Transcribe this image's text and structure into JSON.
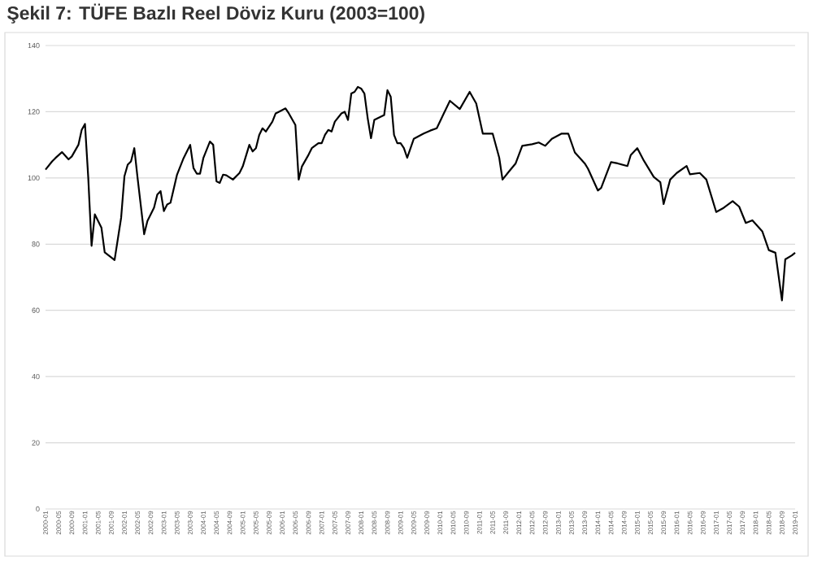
{
  "chart_data": {
    "type": "line",
    "title": "Şekil 7: TÜFE Bazlı Reel Döviz Kuru (2003=100)",
    "x": [
      "2000-01",
      "2000-03",
      "2000-04",
      "2000-06",
      "2000-08",
      "2000-09",
      "2000-11",
      "2000-12",
      "2001-01",
      "2001-02",
      "2001-03",
      "2001-04",
      "2001-06",
      "2001-07",
      "2001-09",
      "2001-10",
      "2001-12",
      "2002-01",
      "2002-02",
      "2002-03",
      "2002-04",
      "2002-05",
      "2002-07",
      "2002-08",
      "2002-10",
      "2002-11",
      "2002-12",
      "2003-01",
      "2003-02",
      "2003-03",
      "2003-05",
      "2003-07",
      "2003-09",
      "2003-10",
      "2003-11",
      "2003-12",
      "2004-01",
      "2004-03",
      "2004-04",
      "2004-05",
      "2004-06",
      "2004-07",
      "2004-08",
      "2004-10",
      "2004-12",
      "2005-01",
      "2005-03",
      "2005-04",
      "2005-05",
      "2005-06",
      "2005-07",
      "2005-08",
      "2005-10",
      "2005-11",
      "2005-12",
      "2006-02",
      "2006-03",
      "2006-05",
      "2006-06",
      "2006-07",
      "2006-09",
      "2006-10",
      "2006-12",
      "2007-01",
      "2007-02",
      "2007-03",
      "2007-04",
      "2007-05",
      "2007-07",
      "2007-08",
      "2007-09",
      "2007-10",
      "2007-11",
      "2007-12",
      "2008-01",
      "2008-02",
      "2008-03",
      "2008-04",
      "2008-05",
      "2008-07",
      "2008-08",
      "2008-09",
      "2008-10",
      "2008-11",
      "2008-12",
      "2009-01",
      "2009-02",
      "2009-03",
      "2009-05",
      "2009-08",
      "2009-10",
      "2009-12",
      "2010-02",
      "2010-04",
      "2010-07",
      "2010-10",
      "2010-12",
      "2011-02",
      "2011-05",
      "2011-07",
      "2011-08",
      "2011-10",
      "2011-12",
      "2012-02",
      "2012-05",
      "2012-07",
      "2012-09",
      "2012-11",
      "2013-02",
      "2013-04",
      "2013-06",
      "2013-09",
      "2013-10",
      "2014-01",
      "2014-02",
      "2014-05",
      "2014-07",
      "2014-10",
      "2014-11",
      "2015-01",
      "2015-03",
      "2015-06",
      "2015-08",
      "2015-09",
      "2015-11",
      "2016-01",
      "2016-04",
      "2016-05",
      "2016-08",
      "2016-10",
      "2017-01",
      "2017-03",
      "2017-06",
      "2017-08",
      "2017-10",
      "2017-12",
      "2018-03",
      "2018-05",
      "2018-07",
      "2018-09",
      "2018-10",
      "2018-12",
      "2019-01"
    ],
    "series": [
      {
        "color": "#000000",
        "values": [
          102.5,
          105,
          106,
          107.8,
          105.6,
          106.5,
          110,
          114.5,
          116.3,
          100,
          79.5,
          89,
          85,
          77.5,
          76,
          75.2,
          88,
          100.5,
          104,
          105,
          109,
          100,
          83,
          87,
          91,
          95,
          96,
          90,
          92,
          92.5,
          101,
          106,
          110,
          103,
          101.3,
          101.3,
          106,
          111,
          110,
          99,
          98.5,
          101,
          100.8,
          99.5,
          101.5,
          103.5,
          110,
          108,
          109,
          113,
          115,
          114,
          117,
          119.5,
          120,
          121,
          119.5,
          116,
          99.5,
          103.5,
          107,
          109,
          110.5,
          110.5,
          113,
          114.5,
          114,
          117,
          119.5,
          120,
          117.5,
          125.5,
          126,
          127.5,
          127,
          125.5,
          118,
          112,
          117.5,
          118.5,
          119,
          126.5,
          124.5,
          113,
          110.5,
          110.5,
          109,
          106.1,
          111.8,
          113.4,
          114.3,
          115,
          119.2,
          123.3,
          120.8,
          126,
          122.5,
          113.4,
          113.4,
          106.1,
          99.5,
          102,
          104.4,
          109.7,
          110.2,
          110.7,
          109.7,
          111.8,
          113.4,
          113.4,
          107.7,
          104.4,
          102.8,
          96.2,
          97,
          104.8,
          104.4,
          103.6,
          106.9,
          109,
          105.2,
          100.3,
          98.7,
          92.1,
          99.5,
          101.5,
          103.6,
          101.1,
          101.5,
          99.5,
          89.7,
          90.8,
          93,
          91.3,
          86.4,
          87.2,
          83.9,
          78.2,
          77.4,
          63,
          75.4,
          76.6,
          77.4
        ]
      }
    ],
    "xlim": [
      "2000-01",
      "2019-01"
    ],
    "xticks": [
      "2000-01",
      "2000-05",
      "2000-09",
      "2001-01",
      "2001-05",
      "2001-09",
      "2002-01",
      "2002-05",
      "2002-09",
      "2003-01",
      "2003-05",
      "2003-09",
      "2004-01",
      "2004-05",
      "2004-09",
      "2005-01",
      "2005-05",
      "2005-09",
      "2006-01",
      "2006-05",
      "2006-09",
      "2007-01",
      "2007-05",
      "2007-09",
      "2008-01",
      "2008-05",
      "2008-09",
      "2009-01",
      "2009-05",
      "2009-09",
      "2010-01",
      "2010-05",
      "2010-09",
      "2011-01",
      "2011-05",
      "2011-09",
      "2012-01",
      "2012-05",
      "2012-09",
      "2013-01",
      "2013-05",
      "2013-09",
      "2014-01",
      "2014-05",
      "2014-09",
      "2015-01",
      "2015-05",
      "2015-09",
      "2016-01",
      "2016-05",
      "2016-09",
      "2017-01",
      "2017-05",
      "2017-09",
      "2018-01",
      "2018-05",
      "2018-09",
      "2019-01"
    ],
    "ylim": [
      0,
      140
    ],
    "yticks": [
      0,
      20,
      40,
      60,
      80,
      100,
      120,
      140
    ],
    "grid": "y"
  }
}
